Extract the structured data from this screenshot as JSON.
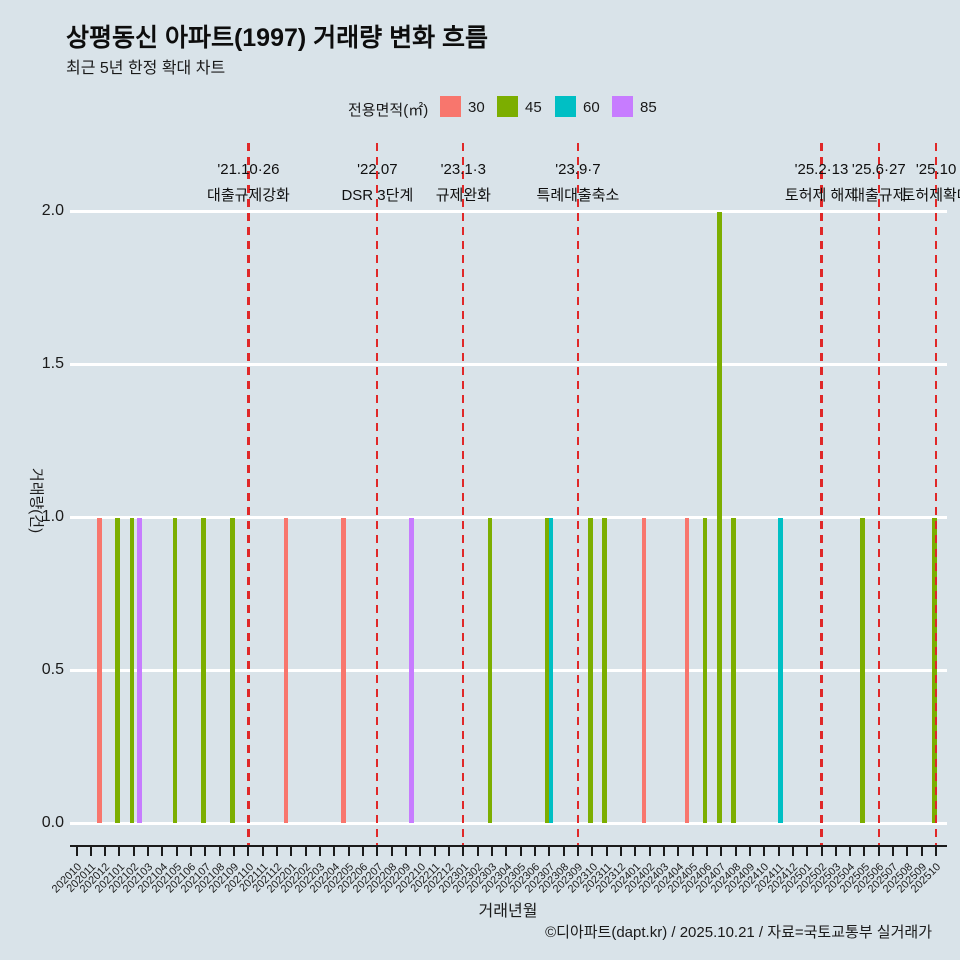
{
  "page": {
    "footer": "©디아파트(dapt.kr) / 2025.10.21 / 자료=국토교통부 실거래가",
    "background_color": "#d9e3e9"
  },
  "chart_data": {
    "type": "bar",
    "title": "상평동신 아파트(1997) 거래량 변화 흐름",
    "subtitle": "최근 5년 한정 확대 차트",
    "xlabel": "거래년월",
    "ylabel": "거래량(건)",
    "ylim": [
      0,
      2
    ],
    "ytick_labels": [
      "0.0",
      "0.5",
      "1.0",
      "1.5",
      "2.0"
    ],
    "grid": "horizontal white lines, no vertical grid",
    "legend_position": "top",
    "legend_title": "전용면적(㎡)",
    "categories": [
      "202010",
      "202011",
      "202012",
      "202101",
      "202102",
      "202103",
      "202104",
      "202105",
      "202106",
      "202107",
      "202108",
      "202109",
      "202110",
      "202111",
      "202112",
      "202201",
      "202202",
      "202203",
      "202204",
      "202205",
      "202206",
      "202207",
      "202208",
      "202209",
      "202210",
      "202211",
      "202212",
      "202301",
      "202302",
      "202303",
      "202304",
      "202305",
      "202306",
      "202307",
      "202308",
      "202309",
      "202310",
      "202311",
      "202312",
      "202401",
      "202402",
      "202403",
      "202404",
      "202405",
      "202406",
      "202407",
      "202408",
      "202409",
      "202410",
      "202411",
      "202412",
      "202501",
      "202502",
      "202503",
      "202504",
      "202505",
      "202506",
      "202507",
      "202508",
      "202509",
      "202510"
    ],
    "series": [
      {
        "name": "30",
        "color": "#F8766D",
        "points": [
          {
            "month": "202012",
            "count": 1
          },
          {
            "month": "202201",
            "count": 1
          },
          {
            "month": "202205",
            "count": 1
          },
          {
            "month": "202402",
            "count": 1
          },
          {
            "month": "202405",
            "count": 1
          }
        ]
      },
      {
        "name": "45",
        "color": "#7CAE00",
        "points": [
          {
            "month": "202101",
            "count": 1
          },
          {
            "month": "202102",
            "count": 1
          },
          {
            "month": "202105",
            "count": 1
          },
          {
            "month": "202107",
            "count": 1
          },
          {
            "month": "202109",
            "count": 1
          },
          {
            "month": "202303",
            "count": 1
          },
          {
            "month": "202307",
            "count": 1
          },
          {
            "month": "202310",
            "count": 1
          },
          {
            "month": "202311",
            "count": 1
          },
          {
            "month": "202406",
            "count": 1
          },
          {
            "month": "202407",
            "count": 2
          },
          {
            "month": "202408",
            "count": 1
          },
          {
            "month": "202505",
            "count": 1
          },
          {
            "month": "202510",
            "count": 1
          }
        ]
      },
      {
        "name": "60",
        "color": "#00BFC4",
        "points": [
          {
            "month": "202307",
            "count": 1
          },
          {
            "month": "202411",
            "count": 1
          }
        ]
      },
      {
        "name": "85",
        "color": "#C77CFF",
        "points": [
          {
            "month": "202102",
            "count": 1
          },
          {
            "month": "202209",
            "count": 1
          }
        ]
      }
    ],
    "events": [
      {
        "month": "202110",
        "date": "'21.10·26",
        "label": "대출규제강화"
      },
      {
        "month": "202207",
        "date": "'22.07",
        "label": "DSR 3단계"
      },
      {
        "month": "202301",
        "date": "'23.1·3",
        "label": "규제완화"
      },
      {
        "month": "202309",
        "date": "'23.9·7",
        "label": "특례대출축소"
      },
      {
        "month": "202502",
        "date": "'25.2·13",
        "label": "토허제 해제"
      },
      {
        "month": "202506",
        "date": "'25.6·27",
        "label": "대출규제"
      },
      {
        "month": "202510",
        "date": "'25.10",
        "label": "토허제확대"
      }
    ],
    "event_line_color": "#e02828",
    "gridline_color": "#ffffff"
  }
}
